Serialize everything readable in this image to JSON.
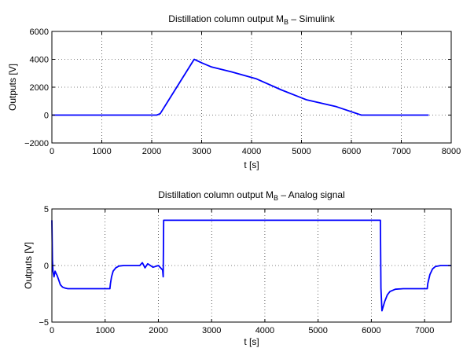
{
  "chart_data": [
    {
      "type": "line",
      "title": "Distillation column output M",
      "title_subscript": "B",
      "title_suffix": " – Simulink",
      "xlabel": "t [s]",
      "ylabel": "Outputs [V]",
      "xlim": [
        0,
        8000
      ],
      "ylim": [
        -2000,
        6000
      ],
      "xticks": [
        0,
        1000,
        2000,
        3000,
        4000,
        5000,
        6000,
        7000,
        8000
      ],
      "yticks": [
        -2000,
        0,
        2000,
        4000,
        6000
      ],
      "xtick_labels": [
        "0",
        "1000",
        "2000",
        "3000",
        "4000",
        "5000",
        "6000",
        "7000",
        "8000"
      ],
      "ytick_labels": [
        "−2000",
        "0",
        "2000",
        "4000",
        "6000"
      ],
      "grid": true,
      "color": "#0000ff",
      "series": [
        {
          "x": [
            0,
            2100,
            2170,
            2850,
            3000,
            3200,
            3600,
            4100,
            4600,
            5100,
            5700,
            6200,
            6500,
            7550
          ],
          "y": [
            0,
            0,
            100,
            4000,
            3750,
            3450,
            3100,
            2600,
            1800,
            1100,
            600,
            0,
            0,
            0
          ]
        }
      ]
    },
    {
      "type": "line",
      "title": "Distillation column output M",
      "title_subscript": "B",
      "title_suffix": " – Analog signal",
      "xlabel": "t [s]",
      "ylabel": "Outputs [V]",
      "xlim": [
        0,
        7500
      ],
      "ylim": [
        -5,
        5
      ],
      "xticks": [
        0,
        1000,
        2000,
        3000,
        4000,
        5000,
        6000,
        7000
      ],
      "yticks": [
        -5,
        0,
        5
      ],
      "xtick_labels": [
        "0",
        "1000",
        "2000",
        "3000",
        "4000",
        "5000",
        "6000",
        "7000"
      ],
      "ytick_labels": [
        "−5",
        "0",
        "5"
      ],
      "grid": true,
      "color": "#0000ff",
      "series": [
        {
          "x": [
            0,
            10,
            20,
            40,
            60,
            80,
            100,
            130,
            160,
            200,
            250,
            300,
            400,
            500,
            700,
            900,
            1050,
            1090,
            1100,
            1120,
            1150,
            1200,
            1260,
            1350,
            1500,
            1650,
            1700,
            1750,
            1800,
            1900,
            2000,
            2080,
            2090,
            2100,
            2150,
            3000,
            4000,
            5000,
            6000,
            6170,
            6180,
            6200,
            6250,
            6300,
            6350,
            6450,
            6600,
            6800,
            7000,
            7050,
            7060,
            7100,
            7150,
            7200,
            7300,
            7500
          ],
          "y": [
            4,
            0.5,
            -0.5,
            -1,
            -0.5,
            -0.7,
            -0.9,
            -1.3,
            -1.7,
            -1.9,
            -2,
            -2.05,
            -2.05,
            -2.05,
            -2.05,
            -2.05,
            -2.05,
            -2.05,
            -1.6,
            -1.0,
            -0.5,
            -0.2,
            -0.05,
            0,
            0,
            0,
            0.25,
            -0.2,
            0.15,
            -0.15,
            0,
            -0.4,
            -1,
            4,
            4,
            4,
            4,
            4,
            4,
            4,
            -2,
            -4,
            -3.2,
            -2.6,
            -2.3,
            -2.1,
            -2.05,
            -2.05,
            -2.05,
            -2.05,
            -1.6,
            -0.8,
            -0.3,
            -0.1,
            0,
            0
          ]
        }
      ]
    }
  ]
}
